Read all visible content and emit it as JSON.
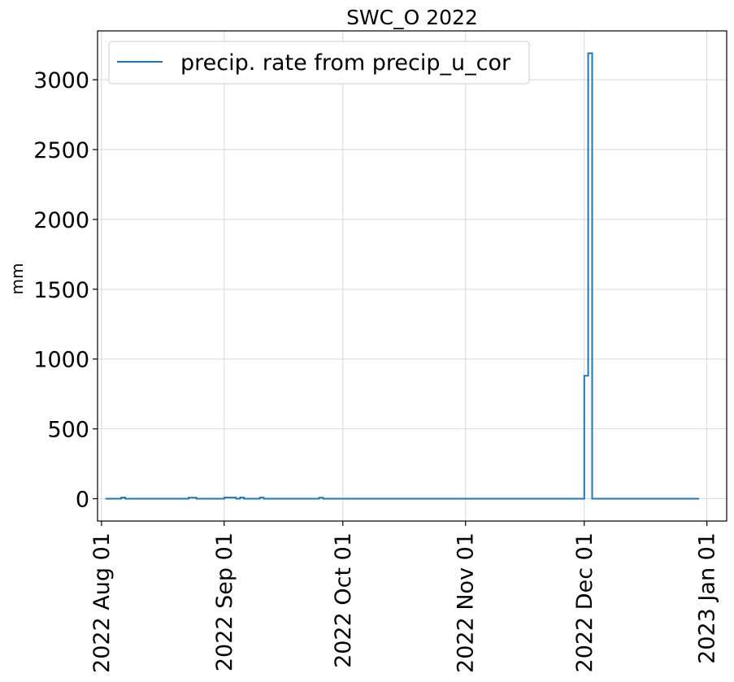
{
  "chart_data": {
    "type": "line",
    "step": true,
    "title": "SWC_O 2022",
    "xlabel": "",
    "ylabel": "mm",
    "xlim": [
      "2022-07-31",
      "2023-01-06"
    ],
    "ylim": [
      -160,
      3350
    ],
    "grid": true,
    "legend_position": "upper-left",
    "series": [
      {
        "name": "precip. rate from precip_u_cor",
        "color": "#1f77b4",
        "points": [
          {
            "x": "2022-08-02",
            "y": 0
          },
          {
            "x": "2022-08-06",
            "y": 8
          },
          {
            "x": "2022-08-07",
            "y": 0
          },
          {
            "x": "2022-08-23",
            "y": 7
          },
          {
            "x": "2022-08-25",
            "y": 0
          },
          {
            "x": "2022-09-01",
            "y": 8
          },
          {
            "x": "2022-09-04",
            "y": 0
          },
          {
            "x": "2022-09-05",
            "y": 8
          },
          {
            "x": "2022-09-06",
            "y": 0
          },
          {
            "x": "2022-09-10",
            "y": 8
          },
          {
            "x": "2022-09-11",
            "y": 0
          },
          {
            "x": "2022-09-25",
            "y": 7
          },
          {
            "x": "2022-09-26",
            "y": 0
          },
          {
            "x": "2022-12-01",
            "y": 880
          },
          {
            "x": "2022-12-02",
            "y": 3190
          },
          {
            "x": "2022-12-03",
            "y": 0
          },
          {
            "x": "2022-12-30",
            "y": 0
          }
        ]
      }
    ],
    "y_ticks": [
      0,
      500,
      1000,
      1500,
      2000,
      2500,
      3000
    ],
    "y_tick_labels": [
      "0",
      "500",
      "1000",
      "1500",
      "2000",
      "2500",
      "3000"
    ],
    "x_ticks": [
      "2022-08-01",
      "2022-09-01",
      "2022-10-01",
      "2022-11-01",
      "2022-12-01",
      "2023-01-01"
    ],
    "x_tick_labels": [
      "2022 Aug 01",
      "2022 Sep 01",
      "2022 Oct 01",
      "2022 Nov 01",
      "2022 Dec 01",
      "2023 Jan 01"
    ]
  }
}
